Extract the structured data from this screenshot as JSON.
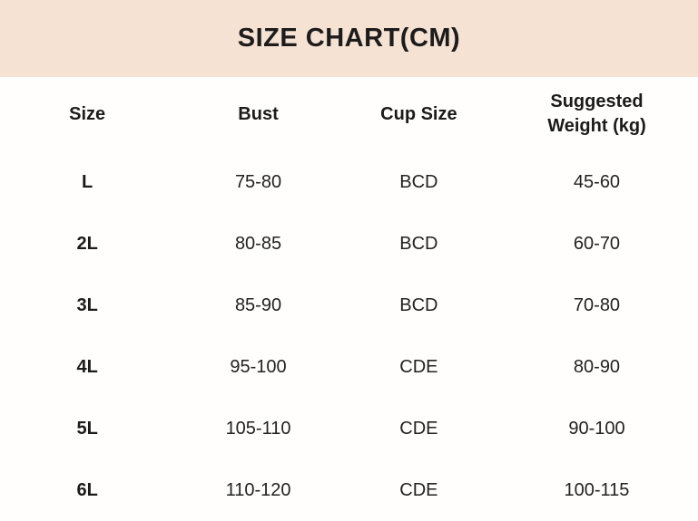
{
  "title": "SIZE CHART(CM)",
  "colors": {
    "header_background": "#f6e2d3",
    "body_background": "#fffefd",
    "text": "#1c1c1c"
  },
  "table": {
    "columns": [
      "Size",
      "Bust",
      "Cup Size",
      "Suggested\nWeight (kg)"
    ],
    "rows": [
      [
        "L",
        "75-80",
        "BCD",
        "45-60"
      ],
      [
        "2L",
        "80-85",
        "BCD",
        "60-70"
      ],
      [
        "3L",
        "85-90",
        "BCD",
        "70-80"
      ],
      [
        "4L",
        "95-100",
        "CDE",
        "80-90"
      ],
      [
        "5L",
        "105-110",
        "CDE",
        "90-100"
      ],
      [
        "6L",
        "110-120",
        "CDE",
        "100-115"
      ]
    ]
  },
  "chart_data": {
    "type": "table",
    "title": "SIZE CHART(CM)",
    "columns": [
      "Size",
      "Bust",
      "Cup Size",
      "Suggested Weight (kg)"
    ],
    "rows": [
      {
        "size": "L",
        "bust_cm": "75-80",
        "cup_size": "BCD",
        "suggested_weight_kg": "45-60"
      },
      {
        "size": "2L",
        "bust_cm": "80-85",
        "cup_size": "BCD",
        "suggested_weight_kg": "60-70"
      },
      {
        "size": "3L",
        "bust_cm": "85-90",
        "cup_size": "BCD",
        "suggested_weight_kg": "70-80"
      },
      {
        "size": "4L",
        "bust_cm": "95-100",
        "cup_size": "CDE",
        "suggested_weight_kg": "80-90"
      },
      {
        "size": "5L",
        "bust_cm": "105-110",
        "cup_size": "CDE",
        "suggested_weight_kg": "90-100"
      },
      {
        "size": "6L",
        "bust_cm": "110-120",
        "cup_size": "CDE",
        "suggested_weight_kg": "100-115"
      }
    ],
    "units": "cm",
    "layout": "header band on top, borderless centered table, 4 columns, 6 data rows"
  }
}
